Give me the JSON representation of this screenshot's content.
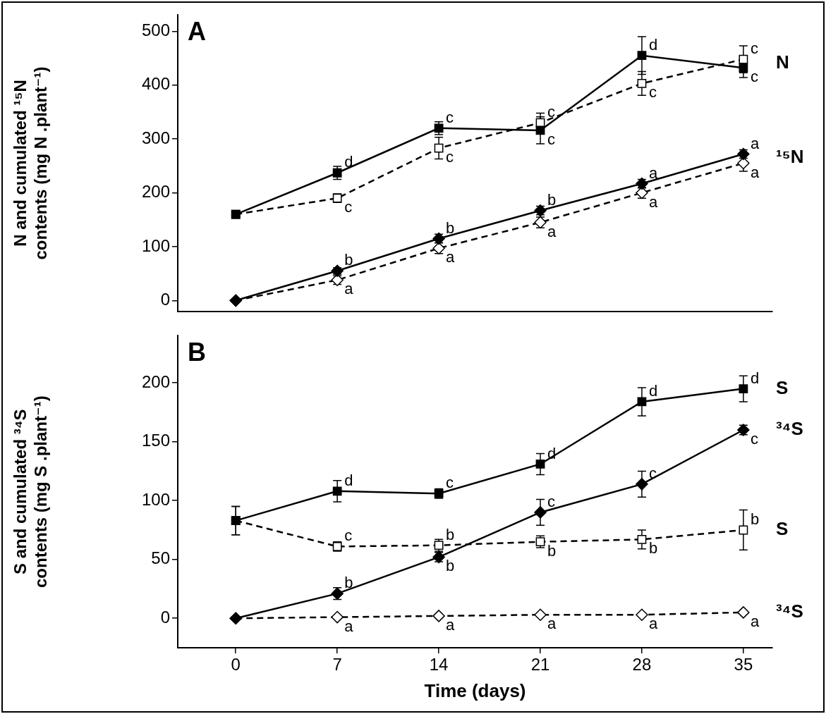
{
  "chart_data": [
    {
      "type": "line",
      "panel": "A",
      "y_label": [
        "N and cumulated ¹⁵N",
        "contents (mg N .plant⁻¹)"
      ],
      "x": [
        0,
        7,
        14,
        21,
        28,
        35
      ],
      "xlim": [
        -4,
        37
      ],
      "xticks": [
        0,
        7,
        14,
        21,
        28,
        35
      ],
      "ylim": [
        -20,
        530
      ],
      "yticks": [
        0,
        100,
        200,
        300,
        400,
        500
      ],
      "grid": false,
      "tick_labels": "y",
      "series": [
        {
          "color": "#000000",
          "marker": "square",
          "line_style": "solid",
          "values": [
            160,
            237,
            320,
            316,
            455,
            432
          ],
          "errors": [
            null,
            12,
            12,
            25,
            35,
            18
          ],
          "point_labels": [
            null,
            "d",
            "c",
            "c",
            "d",
            "c"
          ]
        },
        {
          "color": "#000000",
          "marker": "open square",
          "line_style": "dashed",
          "values": [
            160,
            190,
            283,
            330,
            403,
            448
          ],
          "errors": [
            null,
            8,
            20,
            18,
            22,
            25
          ],
          "point_labels": [
            null,
            "c",
            "c",
            "c",
            "c",
            "c"
          ]
        },
        {
          "color": "#000000",
          "marker": "diamond",
          "line_style": "solid",
          "values": [
            0,
            55,
            115,
            167,
            217,
            272
          ],
          "errors": [
            null,
            6,
            8,
            8,
            8,
            8
          ],
          "point_labels": [
            null,
            "b",
            "b",
            "b",
            "a",
            "a"
          ]
        },
        {
          "color": "#000000",
          "marker": "open diamond",
          "line_style": "dashed",
          "values": [
            0,
            38,
            97,
            145,
            200,
            255
          ],
          "errors": [
            null,
            8,
            10,
            10,
            10,
            15
          ],
          "point_labels": [
            null,
            "a",
            "a",
            "a",
            "a",
            "a"
          ]
        }
      ],
      "annotations": [
        {
          "text": "N",
          "x": 35,
          "y": 440
        },
        {
          "text": "¹⁵N",
          "x": 35,
          "y": 265
        }
      ]
    },
    {
      "type": "line",
      "panel": "B",
      "y_label": [
        "S and cumulated ³⁴S",
        "contents (mg S .plant⁻¹)"
      ],
      "x_label": "Time (days)",
      "x": [
        0,
        7,
        14,
        21,
        28,
        35
      ],
      "xlim": [
        -4,
        37
      ],
      "xticks": [
        0,
        7,
        14,
        21,
        28,
        35
      ],
      "ylim": [
        -25,
        240
      ],
      "yticks": [
        0,
        50,
        100,
        150,
        200
      ],
      "grid": false,
      "series": [
        {
          "color": "#000000",
          "marker": "square",
          "line_style": "solid",
          "values": [
            83,
            108,
            106,
            131,
            184,
            195
          ],
          "errors": [
            12,
            9,
            4,
            9,
            12,
            11
          ],
          "point_labels": [
            null,
            "d",
            "c",
            "d",
            "d",
            "d"
          ]
        },
        {
          "color": "#000000",
          "marker": "open square",
          "line_style": "dashed",
          "values": [
            83,
            61,
            62,
            65,
            67,
            75
          ],
          "errors": [
            12,
            4,
            5,
            5,
            8,
            17
          ],
          "point_labels": [
            null,
            "c",
            "b",
            "b",
            "b",
            "b"
          ]
        },
        {
          "color": "#000000",
          "marker": "diamond",
          "line_style": "solid",
          "values": [
            0,
            21,
            52,
            90,
            114,
            160
          ],
          "errors": [
            null,
            5,
            4,
            11,
            11,
            4
          ],
          "point_labels": [
            null,
            "b",
            "b",
            "c",
            "c",
            "c"
          ]
        },
        {
          "color": "#000000",
          "marker": "open diamond",
          "line_style": "dashed",
          "values": [
            0,
            1,
            2,
            3,
            3,
            5
          ],
          "errors": [
            null,
            null,
            null,
            null,
            null,
            null
          ],
          "point_labels": [
            null,
            "a",
            "a",
            "a",
            "a",
            "a"
          ]
        }
      ],
      "annotations": [
        {
          "text": "S",
          "x": 35,
          "y": 195
        },
        {
          "text": "³⁴S",
          "x": 35,
          "y": 160
        },
        {
          "text": "S",
          "x": 35,
          "y": 75
        },
        {
          "text": "³⁴S",
          "x": 35,
          "y": 5
        }
      ]
    }
  ]
}
